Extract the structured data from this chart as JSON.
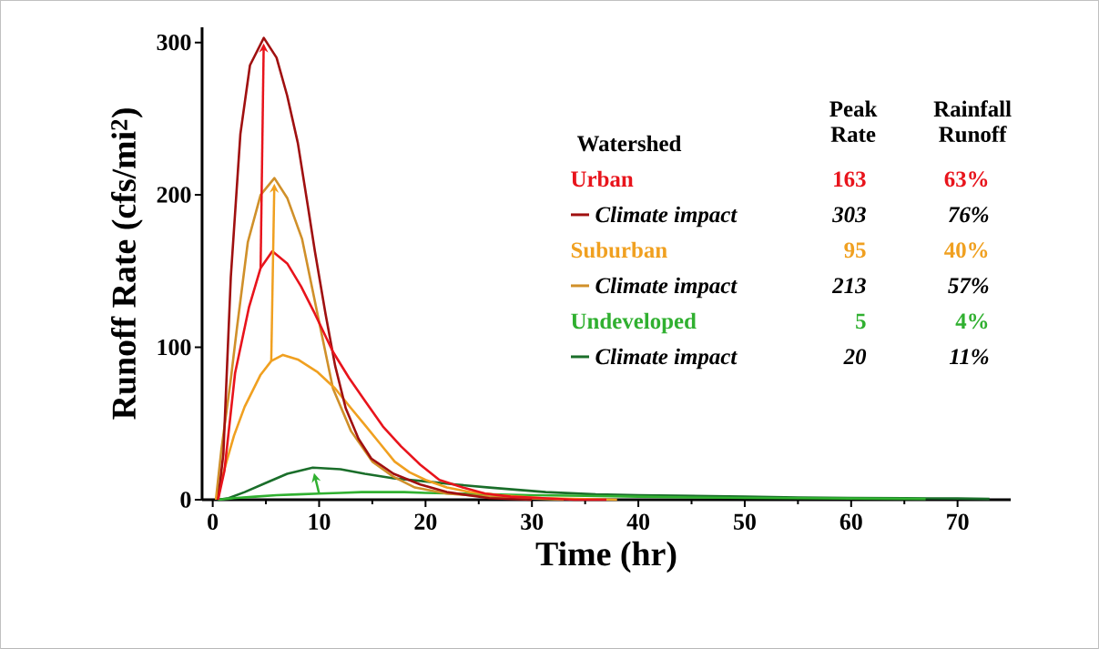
{
  "chart_data": {
    "type": "line",
    "xlabel": "Time (hr)",
    "ylabel": "Runoff Rate (cfs/mi$^{2}$)",
    "xlim": [
      -1,
      75
    ],
    "ylim": [
      0,
      310
    ],
    "xticks": [
      0,
      10,
      20,
      30,
      40,
      50,
      60,
      70
    ],
    "yticks": [
      0,
      100,
      200,
      300
    ],
    "legend": "right",
    "legend_title": "Watershed",
    "grid": false,
    "series": [
      {
        "name": "Urban",
        "color": "#e8141c",
        "x": [
          0.5,
          1.1,
          2.1,
          3.4,
          4.5,
          5.6,
          7,
          8.3,
          9.6,
          11.3,
          12.8,
          14.3,
          16,
          17.7,
          19.5,
          21.3,
          23.5,
          25.6,
          28,
          31,
          34,
          37
        ],
        "values": [
          0,
          19,
          83,
          126,
          152,
          163,
          155,
          140,
          122,
          97,
          80,
          65,
          48,
          35,
          23,
          13,
          8,
          4,
          2,
          1,
          0,
          0
        ]
      },
      {
        "name": "Climate impact",
        "color": "#a01010",
        "x": [
          0.5,
          1,
          1.7,
          2.6,
          3.5,
          4.8,
          6,
          7,
          8,
          9,
          9.6,
          10.6,
          11.5,
          12.5,
          13.7,
          14.9,
          17,
          19.5,
          22,
          26,
          30
        ],
        "values": [
          0,
          30,
          146,
          240,
          285,
          303,
          290,
          265,
          234,
          190,
          163,
          122,
          88,
          60,
          40,
          27,
          17,
          10,
          5,
          1,
          0
        ]
      },
      {
        "name": "Suburban",
        "color": "#f0a020",
        "x": [
          0.3,
          1.3,
          2,
          3,
          4.5,
          5.5,
          6.6,
          8,
          9.8,
          11.5,
          13,
          14.3,
          15.7,
          17.1,
          18.5,
          20,
          22,
          24.2,
          27,
          31,
          38
        ],
        "values": [
          0,
          25,
          42,
          61,
          82,
          91,
          95,
          92,
          84,
          73,
          60,
          49,
          37,
          25,
          18,
          13,
          8,
          5,
          3,
          1,
          0
        ]
      },
      {
        "name": "Climate impact",
        "color": "#d0902a",
        "x": [
          0.3,
          0.8,
          1.7,
          2.3,
          3.3,
          4.5,
          5.8,
          7,
          8.4,
          9.9,
          11.3,
          13,
          15,
          17,
          19,
          22,
          26,
          33
        ],
        "values": [
          0,
          32,
          79,
          114,
          169,
          200,
          211,
          198,
          171,
          120,
          73,
          45,
          25,
          15,
          8,
          4,
          2,
          0
        ]
      },
      {
        "name": "Undeveloped",
        "color": "#30b030",
        "x": [
          0.5,
          2,
          4,
          6,
          8,
          10,
          12,
          14,
          16,
          18,
          20,
          23,
          26,
          30,
          35,
          40,
          45,
          50,
          55,
          60,
          67
        ],
        "values": [
          0,
          1,
          2,
          3,
          3.5,
          4,
          4.5,
          5,
          5,
          5,
          4.5,
          4,
          3.5,
          3,
          2.5,
          2,
          1.5,
          1.2,
          1,
          0.8,
          0.5
        ]
      },
      {
        "name": "Climate impact",
        "color": "#1a6e2a",
        "x": [
          0.5,
          1.5,
          3,
          5,
          7,
          9.4,
          12,
          14.3,
          17,
          20,
          22.8,
          26,
          31.3,
          36,
          40,
          45,
          50,
          55,
          60,
          65,
          70,
          73
        ],
        "values": [
          0,
          1,
          5,
          11,
          17,
          21,
          20,
          17,
          14,
          12,
          10,
          8,
          5,
          3.5,
          3,
          2.5,
          2,
          1.5,
          1.2,
          1,
          0.8,
          0.5
        ]
      }
    ],
    "annotations": [
      "Peak Rate",
      "Rainfall Runoff",
      "163",
      "63%",
      "303",
      "76%",
      "95",
      "40%",
      "213",
      "57%",
      "5",
      "4%",
      "20",
      "11%"
    ]
  }
}
